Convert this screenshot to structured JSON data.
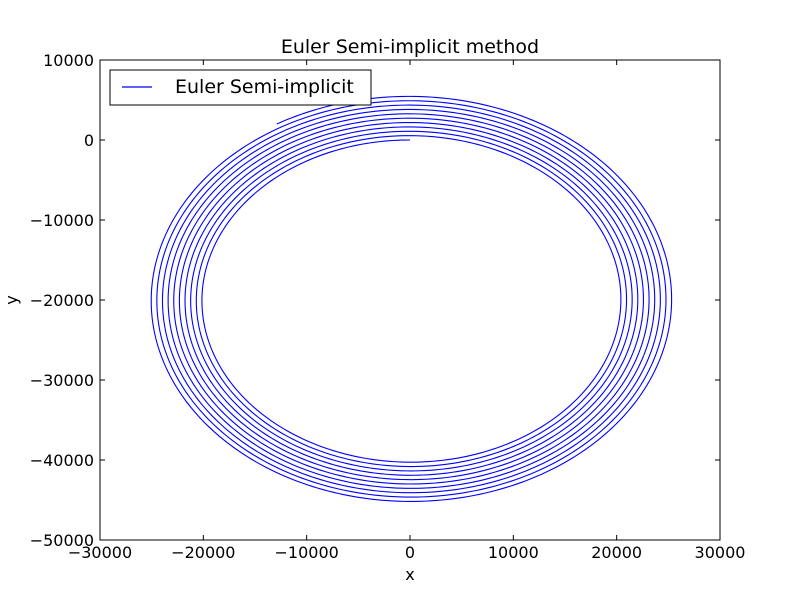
{
  "chart_data": {
    "type": "line",
    "title": "Euler Semi-implicit method",
    "xlabel": "x",
    "ylabel": "y",
    "xlim": [
      -30000,
      30000
    ],
    "ylim": [
      -50000,
      10000
    ],
    "xticks": [
      -30000,
      -20000,
      -10000,
      0,
      10000,
      20000,
      30000
    ],
    "yticks": [
      10000,
      0,
      -10000,
      -20000,
      -30000,
      -40000,
      -50000
    ],
    "xtick_labels": [
      "−30000",
      "−20000",
      "−10000",
      "0",
      "10000",
      "20000",
      "30000"
    ],
    "ytick_labels": [
      "10000",
      "0",
      "−10000",
      "−20000",
      "−30000",
      "−40000",
      "−50000"
    ],
    "grid": false,
    "legend": {
      "position": "top-left",
      "entries": [
        "Euler Semi-implicit"
      ]
    },
    "series": [
      {
        "name": "Euler Semi-implicit",
        "color": "#0000ff",
        "curve": "outward spiral (ellipse)",
        "center": [
          0,
          -20000
        ],
        "start": [
          0,
          0
        ],
        "end": [
          -13000,
          2200
        ],
        "inner_semi_axes": [
          20000,
          20000
        ],
        "outer_semi_axes": [
          25500,
          25500
        ],
        "turns": 10.3
      }
    ]
  }
}
